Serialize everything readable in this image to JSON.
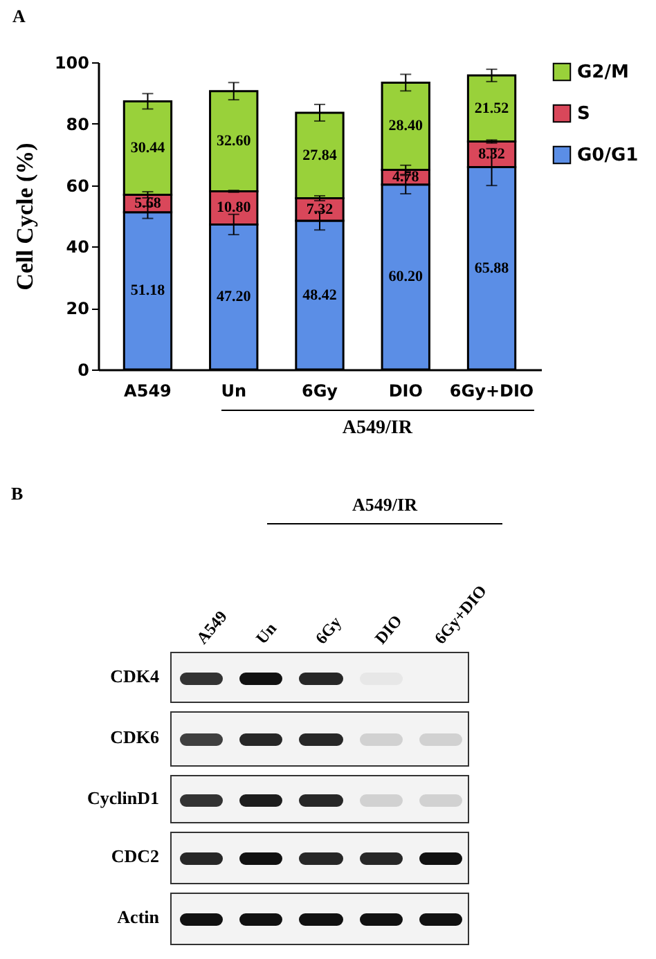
{
  "chart_data": [
    {
      "type": "bar",
      "title": "A",
      "ylabel": "Cell Cycle (%)",
      "stacked": true,
      "categories": [
        "A549",
        "Un",
        "6Gy",
        "DIO",
        "6Gy+DIO"
      ],
      "series": [
        {
          "name": "G0/G1",
          "color": "#5b8ee6",
          "values": [
            51.18,
            47.2,
            48.42,
            60.2,
            65.88
          ],
          "errors": [
            2,
            3.3,
            3,
            3,
            6
          ],
          "value_labels": [
            "51.18",
            "47.20",
            "48.42",
            "60.20",
            "65.88"
          ]
        },
        {
          "name": "S",
          "color": "#d9475a",
          "values": [
            5.68,
            10.8,
            7.32,
            4.78,
            8.32
          ],
          "errors": [
            1,
            0.3,
            0.8,
            1.5,
            0.5
          ],
          "value_labels": [
            "5.68",
            "10.80",
            "7.32",
            "4.78",
            "8.32"
          ]
        },
        {
          "name": "G2/M",
          "color": "#99d13a",
          "values": [
            30.44,
            32.6,
            27.84,
            28.4,
            21.52
          ],
          "errors": [
            2.5,
            2.8,
            2.7,
            2.7,
            2
          ],
          "value_labels": [
            "30.44",
            "32.60",
            "27.84",
            "28.40",
            "21.52"
          ]
        }
      ],
      "ylim": [
        0,
        100
      ],
      "yticks": [
        0,
        20,
        40,
        60,
        80,
        100
      ],
      "grid": false,
      "legend": "right",
      "annotations": [
        "A549/IR"
      ]
    },
    {
      "type": "other",
      "title": "B",
      "annotations": [
        "A549/IR"
      ],
      "categories": [
        "A549",
        "Un",
        "6Gy",
        "DIO",
        "6Gy+DIO"
      ],
      "y_categories": [
        "CDK4",
        "CDK6",
        "CyclinD1",
        "CDC2",
        "Actin"
      ]
    }
  ]
}
